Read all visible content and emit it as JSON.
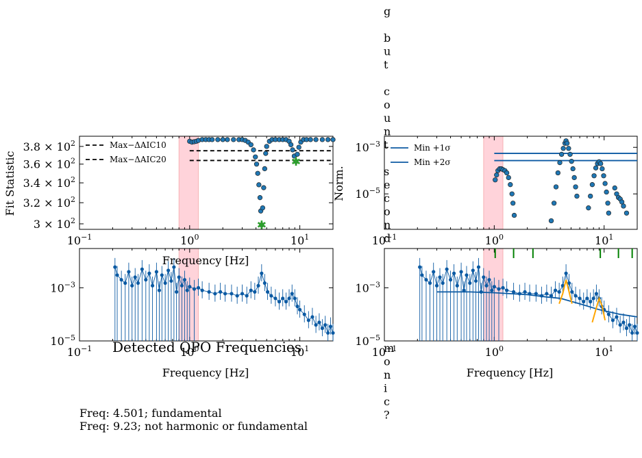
{
  "vertical_text": "g\n\nb\nu\nt\n\nc\no\nu\nn\nt\n\ns\ne\nc\no\nn\nd",
  "vertical_text_bottom": "m\no\nn\ni\nc\n?",
  "colors": {
    "marker": "#1f77b4",
    "line": "#0b5aa3",
    "fit": "#ffa500",
    "band": "#ffb6c1",
    "star": "#2ca02c",
    "tick_green": "#008000"
  },
  "chart_data": [
    {
      "type": "scatter",
      "xlabel": "Frequency [Hz]",
      "ylabel": "Fit Statistic",
      "xscale": "log",
      "yscale": "log",
      "xlim": [
        0.1,
        20
      ],
      "ylim": [
        295,
        392
      ],
      "x_ticks": [
        "10^-1",
        "10^0",
        "10^1"
      ],
      "y_ticks": [
        "3 × 10^2",
        "3.2 × 10^2",
        "3.4 × 10^2",
        "3.6 × 10^2",
        "3.8 × 10^2"
      ],
      "legend": [
        "Max−ΔAIC10",
        "Max−ΔAIC20"
      ],
      "legend_position": "upper-left",
      "hlines": [
        {
          "name": "Max−ΔAIC10",
          "y": 375,
          "xmin": 1.0,
          "xmax": 20,
          "style": "dashed"
        },
        {
          "name": "Max−ΔAIC20",
          "y": 364,
          "xmin": 1.0,
          "xmax": 20,
          "style": "dashed"
        }
      ],
      "shaded_x": [
        0.8,
        1.2
      ],
      "points": [
        [
          1.0,
          386
        ],
        [
          1.05,
          385
        ],
        [
          1.1,
          385.5
        ],
        [
          1.15,
          386
        ],
        [
          1.2,
          387
        ],
        [
          1.3,
          388
        ],
        [
          1.4,
          388
        ],
        [
          1.5,
          388
        ],
        [
          1.6,
          388
        ],
        [
          1.8,
          388
        ],
        [
          2.0,
          388
        ],
        [
          2.2,
          388
        ],
        [
          2.5,
          388
        ],
        [
          2.8,
          388
        ],
        [
          3.0,
          388
        ],
        [
          3.2,
          387
        ],
        [
          3.4,
          385
        ],
        [
          3.6,
          382
        ],
        [
          3.8,
          376
        ],
        [
          3.95,
          368
        ],
        [
          4.05,
          360
        ],
        [
          4.15,
          350
        ],
        [
          4.25,
          338
        ],
        [
          4.35,
          325
        ],
        [
          4.42,
          312
        ],
        [
          4.5,
          299
        ],
        [
          4.6,
          315
        ],
        [
          4.7,
          335
        ],
        [
          4.8,
          355
        ],
        [
          4.9,
          372
        ],
        [
          5.0,
          380
        ],
        [
          5.3,
          386
        ],
        [
          5.6,
          388
        ],
        [
          6.0,
          388
        ],
        [
          6.5,
          388
        ],
        [
          7.0,
          388
        ],
        [
          7.5,
          388
        ],
        [
          8.0,
          386
        ],
        [
          8.3,
          382
        ],
        [
          8.6,
          376
        ],
        [
          8.9,
          369
        ],
        [
          9.23,
          363
        ],
        [
          9.5,
          371
        ],
        [
          9.8,
          379
        ],
        [
          10.2,
          385
        ],
        [
          10.8,
          388
        ],
        [
          11.5,
          388
        ],
        [
          12.5,
          388
        ],
        [
          14,
          388
        ],
        [
          16,
          388
        ],
        [
          18,
          388
        ],
        [
          20,
          388
        ]
      ],
      "stars": [
        [
          4.501,
          299
        ],
        [
          9.23,
          363
        ]
      ]
    },
    {
      "type": "scatter",
      "ylabel": "Norm.",
      "xscale": "log",
      "yscale": "log",
      "xlim": [
        0.1,
        20
      ],
      "ylim": [
        3e-07,
        0.003
      ],
      "x_ticks": [
        "10^-1",
        "10^0",
        "10^1"
      ],
      "y_ticks": [
        "10^-5",
        "10^-3"
      ],
      "legend": [
        "Min +1σ",
        "Min +2σ"
      ],
      "legend_position": "upper-left",
      "hlines": [
        {
          "name": "Min +1σ",
          "y": 0.00055,
          "xmin": 1.0,
          "xmax": 20
        },
        {
          "name": "Min +2σ",
          "y": 0.00027,
          "xmin": 1.0,
          "xmax": 20
        }
      ],
      "shaded_x": [
        0.8,
        1.2
      ],
      "points": [
        [
          1.02,
          4e-05
        ],
        [
          1.05,
          6.5e-05
        ],
        [
          1.08,
          0.0001
        ],
        [
          1.12,
          0.00012
        ],
        [
          1.16,
          0.00012
        ],
        [
          1.2,
          0.00011
        ],
        [
          1.25,
          0.0001
        ],
        [
          1.3,
          8e-05
        ],
        [
          1.35,
          5e-05
        ],
        [
          1.4,
          2.5e-05
        ],
        [
          1.45,
          1e-05
        ],
        [
          1.48,
          4e-06
        ],
        [
          1.52,
          1.2e-06
        ],
        [
          3.3,
          7e-07
        ],
        [
          3.5,
          4e-06
        ],
        [
          3.65,
          2e-05
        ],
        [
          3.8,
          8e-05
        ],
        [
          3.95,
          0.00022
        ],
        [
          4.1,
          0.0005
        ],
        [
          4.25,
          0.0009
        ],
        [
          4.4,
          0.0015
        ],
        [
          4.5,
          0.0019
        ],
        [
          4.6,
          0.0015
        ],
        [
          4.75,
          0.0009
        ],
        [
          4.9,
          0.0005
        ],
        [
          5.05,
          0.00025
        ],
        [
          5.2,
          0.00012
        ],
        [
          5.35,
          5e-05
        ],
        [
          5.5,
          2e-05
        ],
        [
          5.65,
          8e-06
        ],
        [
          7.2,
          2.5e-06
        ],
        [
          7.5,
          8e-06
        ],
        [
          7.8,
          2.5e-05
        ],
        [
          8.1,
          6e-05
        ],
        [
          8.4,
          0.00013
        ],
        [
          8.7,
          0.0002
        ],
        [
          9.0,
          0.00024
        ],
        [
          9.3,
          0.0002
        ],
        [
          9.6,
          0.00012
        ],
        [
          9.9,
          6e-05
        ],
        [
          10.2,
          2.8e-05
        ],
        [
          10.5,
          1.2e-05
        ],
        [
          10.8,
          4e-06
        ],
        [
          11.0,
          1.5e-06
        ],
        [
          12.5,
          1.8e-05
        ],
        [
          13.0,
          1e-05
        ],
        [
          13.5,
          7e-06
        ],
        [
          14.0,
          6e-06
        ],
        [
          14.5,
          4.5e-06
        ],
        [
          15.0,
          3e-06
        ],
        [
          16.0,
          1.5e-06
        ]
      ]
    },
    {
      "type": "line",
      "xlabel": "Frequency [Hz]",
      "xscale": "log",
      "yscale": "log",
      "xlim": [
        0.1,
        20
      ],
      "ylim": [
        1e-05,
        0.03
      ],
      "x_ticks": [
        "10^-1",
        "10^0",
        "10^1"
      ],
      "y_ticks": [
        "10^-5",
        "10^-3"
      ],
      "shaded_x": [
        0.8,
        1.2
      ],
      "errorbar_bottoms": [
        0.21,
        0.37,
        0.55
      ],
      "points": [
        [
          0.21,
          0.006
        ],
        [
          0.22,
          0.003
        ],
        [
          0.24,
          0.002
        ],
        [
          0.26,
          0.0015
        ],
        [
          0.28,
          0.004
        ],
        [
          0.3,
          0.0012
        ],
        [
          0.32,
          0.0025
        ],
        [
          0.34,
          0.0015
        ],
        [
          0.37,
          0.005
        ],
        [
          0.4,
          0.002
        ],
        [
          0.43,
          0.0035
        ],
        [
          0.46,
          0.0012
        ],
        [
          0.5,
          0.004
        ],
        [
          0.53,
          0.0008
        ],
        [
          0.56,
          0.003
        ],
        [
          0.6,
          0.0015
        ],
        [
          0.64,
          0.0045
        ],
        [
          0.68,
          0.0018
        ],
        [
          0.72,
          0.006
        ],
        [
          0.76,
          0.0007
        ],
        [
          0.8,
          0.0025
        ],
        [
          0.85,
          0.0012
        ],
        [
          0.9,
          0.002
        ],
        [
          0.95,
          0.0008
        ],
        [
          1.0,
          0.0011
        ],
        [
          1.1,
          0.0009
        ],
        [
          1.2,
          0.001
        ],
        [
          1.3,
          0.0008
        ],
        [
          1.5,
          0.0007
        ],
        [
          1.7,
          0.0006
        ],
        [
          1.9,
          0.0007
        ],
        [
          2.1,
          0.0006
        ],
        [
          2.4,
          0.0006
        ],
        [
          2.7,
          0.0005
        ],
        [
          3.0,
          0.0006
        ],
        [
          3.3,
          0.0005
        ],
        [
          3.6,
          0.0008
        ],
        [
          3.9,
          0.0007
        ],
        [
          4.2,
          0.0012
        ],
        [
          4.5,
          0.0035
        ],
        [
          4.8,
          0.0015
        ],
        [
          5.1,
          0.0007
        ],
        [
          5.5,
          0.0005
        ],
        [
          6.0,
          0.0004
        ],
        [
          6.5,
          0.0003
        ],
        [
          7.0,
          0.0004
        ],
        [
          7.5,
          0.0003
        ],
        [
          8.0,
          0.0004
        ],
        [
          8.5,
          0.0006
        ],
        [
          9.0,
          0.0004
        ],
        [
          9.5,
          0.0002
        ],
        [
          10,
          0.00015
        ],
        [
          11,
          0.0001
        ],
        [
          12,
          6e-05
        ],
        [
          13,
          8e-05
        ],
        [
          14,
          4e-05
        ],
        [
          15,
          5e-05
        ],
        [
          16,
          3e-05
        ],
        [
          17,
          4e-05
        ],
        [
          18,
          2e-05
        ],
        [
          19,
          3.5e-05
        ],
        [
          20,
          2e-05
        ]
      ]
    },
    {
      "type": "line",
      "xlabel": "Frequency [Hz]",
      "xscale": "log",
      "yscale": "log",
      "xlim": [
        0.1,
        20
      ],
      "ylim": [
        1e-05,
        0.03
      ],
      "x_ticks": [
        "10^-1",
        "10^0",
        "10^1"
      ],
      "y_ticks": [
        "10^-5",
        "10^-3"
      ],
      "shaded_x": [
        0.8,
        1.2
      ],
      "marker_ticks_x": [
        1.02,
        1.5,
        2.25,
        9.23,
        13.5,
        18.0
      ],
      "continuum": [
        [
          0.3,
          0.0007
        ],
        [
          0.6,
          0.0007
        ],
        [
          1.0,
          0.00065
        ],
        [
          2.0,
          0.00055
        ],
        [
          3.0,
          0.00045
        ],
        [
          4.0,
          0.0004
        ],
        [
          6.0,
          0.00025
        ],
        [
          9.0,
          0.00015
        ],
        [
          14.0,
          0.0001
        ],
        [
          20.0,
          8e-05
        ]
      ],
      "qpo_fits": [
        [
          [
            3.9,
            0.00025
          ],
          [
            4.2,
            0.0006
          ],
          [
            4.5,
            0.002
          ],
          [
            4.8,
            0.0007
          ],
          [
            5.1,
            0.00025
          ]
        ],
        [
          [
            7.8,
            5e-05
          ],
          [
            8.4,
            0.00015
          ],
          [
            9.0,
            0.0004
          ],
          [
            9.6,
            0.0002
          ],
          [
            10.2,
            6e-05
          ]
        ]
      ],
      "errorbar_bottoms": [
        0.21,
        0.37,
        0.55
      ]
    }
  ],
  "caption": {
    "title": "Detected QPO Frequencies",
    "lines": [
      "Freq: 4.501; fundamental",
      "Freq: 9.23; not harmonic or fundamental"
    ]
  }
}
